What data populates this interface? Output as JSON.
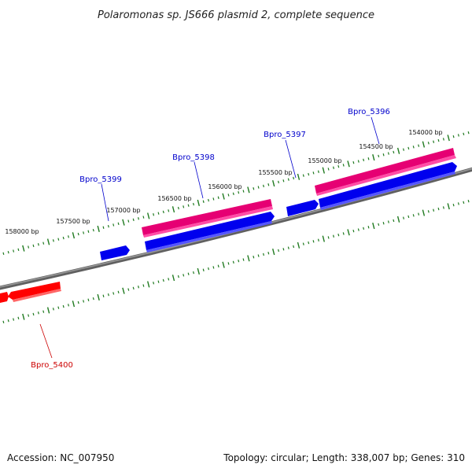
{
  "map": {
    "title": "Polaromonas sp. JS666 plasmid 2, complete sequence",
    "accession_text": "Accession: NC_007950",
    "summary_text": "Topology: circular; Length: 338,007 bp; Genes: 310",
    "colors": {
      "backbone": "#808080",
      "ticks": "#1f7a1f",
      "forward_gene": "#ff3399",
      "reverse_gene": "#0000ee",
      "other_gene": "#ff0000",
      "label_blue": "#0000cc",
      "label_red": "#cc0000"
    },
    "position_labels": [
      "154000 bp",
      "154500 bp",
      "155000 bp",
      "155500 bp",
      "156000 bp",
      "156500 bp",
      "157000 bp",
      "157500 bp",
      "158000 bp"
    ],
    "gene_labels": [
      "Bpro_5396",
      "Bpro_5397",
      "Bpro_5398",
      "Bpro_5399",
      "Bpro_5400"
    ]
  }
}
